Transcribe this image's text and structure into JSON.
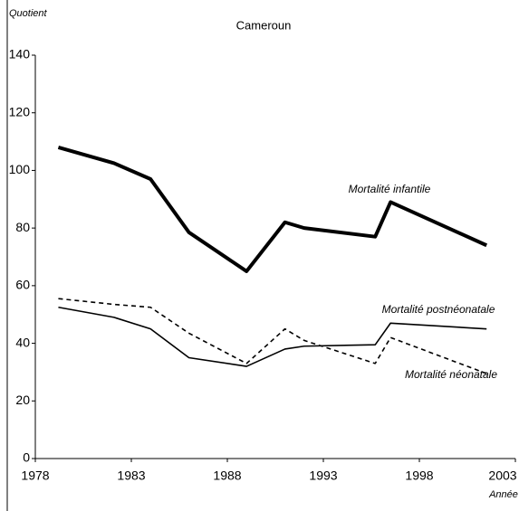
{
  "chart_data": {
    "type": "line",
    "title": "Cameroun",
    "y_label": "Quotient",
    "x_label": "Année",
    "x": [
      1979.2,
      1982.1,
      1984,
      1986,
      1989,
      1991,
      1992,
      1995.7,
      1996.5,
      2001.5
    ],
    "series": [
      {
        "name": "Mortalité infantile",
        "color": "#000000",
        "width": 4,
        "dashed": false,
        "values": [
          108,
          102.5,
          97,
          78.5,
          65,
          82,
          80,
          77,
          89,
          74
        ]
      },
      {
        "name": "Mortalité postnéonatale",
        "color": "#000000",
        "width": 1.6,
        "dashed": false,
        "values": [
          52.5,
          49,
          45,
          35,
          32,
          38,
          39,
          39.5,
          47,
          45
        ]
      },
      {
        "name": "Mortalité néonatale",
        "color": "#000000",
        "width": 1.6,
        "dashed": true,
        "values": [
          55.5,
          53.5,
          52.5,
          43.5,
          33,
          45,
          41,
          33,
          42,
          29.5
        ]
      }
    ],
    "xlim": [
      1978,
      2003
    ],
    "xticks": [
      1978,
      1983,
      1988,
      1993,
      1998,
      2003
    ],
    "ylim": [
      0,
      140
    ],
    "yticks": [
      0,
      20,
      40,
      60,
      80,
      100,
      120,
      140
    ],
    "grid": false
  }
}
